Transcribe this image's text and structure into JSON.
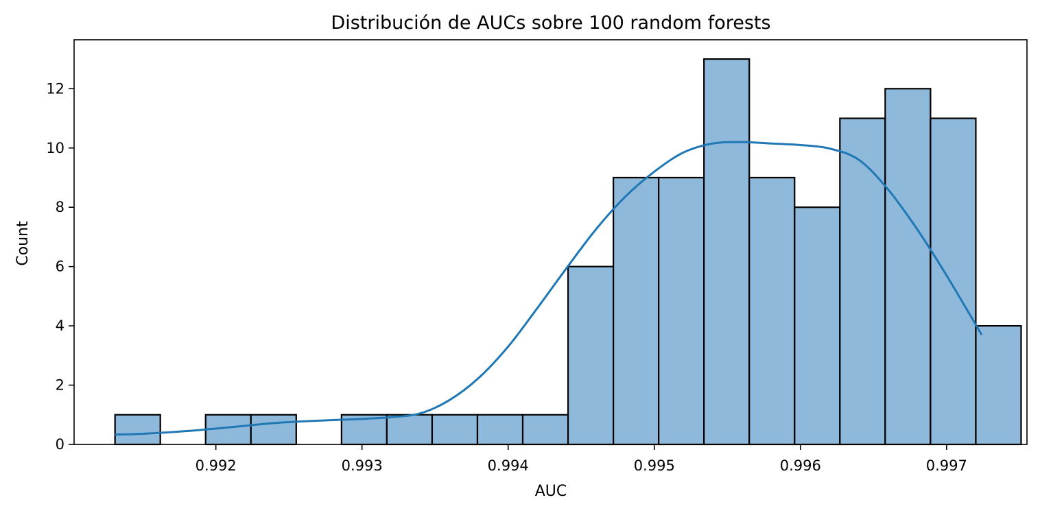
{
  "chart_data": {
    "type": "bar",
    "title": "Distribución de AUCs sobre 100 random forests",
    "xlabel": "AUC",
    "ylabel": "Count",
    "xlim": [
      0.99103,
      0.99755
    ],
    "ylim": [
      0,
      13.65
    ],
    "bin_edges": [
      0.99131,
      0.99162,
      0.99193,
      0.99224,
      0.99255,
      0.99286,
      0.99317,
      0.99348,
      0.99379,
      0.9941,
      0.99441,
      0.99472,
      0.99503,
      0.99534,
      0.99565,
      0.99596,
      0.99627,
      0.99658,
      0.99689,
      0.9972
    ],
    "values": [
      1,
      0,
      1,
      1,
      0,
      1,
      1,
      1,
      1,
      1,
      6,
      9,
      9,
      13,
      9,
      8,
      11,
      12,
      11,
      4
    ],
    "bin_width": 0.00031,
    "bar_color": "#8fb9da",
    "bar_edge_color": "#000000",
    "kde": {
      "color": "#1f77b4",
      "x": [
        0.99131,
        0.9915,
        0.9918,
        0.9921,
        0.9924,
        0.9927,
        0.993,
        0.9932,
        0.9934,
        0.9936,
        0.9938,
        0.994,
        0.9942,
        0.9944,
        0.9946,
        0.9948,
        0.995,
        0.9952,
        0.9954,
        0.9956,
        0.9958,
        0.996,
        0.9962,
        0.9964,
        0.9966,
        0.9968,
        0.997,
        0.99724
      ],
      "y": [
        0.33,
        0.36,
        0.45,
        0.58,
        0.72,
        0.8,
        0.86,
        0.92,
        1.05,
        1.5,
        2.25,
        3.3,
        4.6,
        5.95,
        7.25,
        8.35,
        9.2,
        9.85,
        10.15,
        10.2,
        10.15,
        10.1,
        9.98,
        9.6,
        8.6,
        7.25,
        5.7,
        3.7
      ]
    },
    "xticks": [
      {
        "value": 0.992,
        "label": "0.992"
      },
      {
        "value": 0.993,
        "label": "0.993"
      },
      {
        "value": 0.994,
        "label": "0.994"
      },
      {
        "value": 0.995,
        "label": "0.995"
      },
      {
        "value": 0.996,
        "label": "0.996"
      },
      {
        "value": 0.997,
        "label": "0.997"
      }
    ],
    "yticks": [
      {
        "value": 0,
        "label": "0"
      },
      {
        "value": 2,
        "label": "2"
      },
      {
        "value": 4,
        "label": "4"
      },
      {
        "value": 6,
        "label": "6"
      },
      {
        "value": 8,
        "label": "8"
      },
      {
        "value": 10,
        "label": "10"
      },
      {
        "value": 12,
        "label": "12"
      }
    ],
    "grid": false,
    "legend": "none"
  }
}
